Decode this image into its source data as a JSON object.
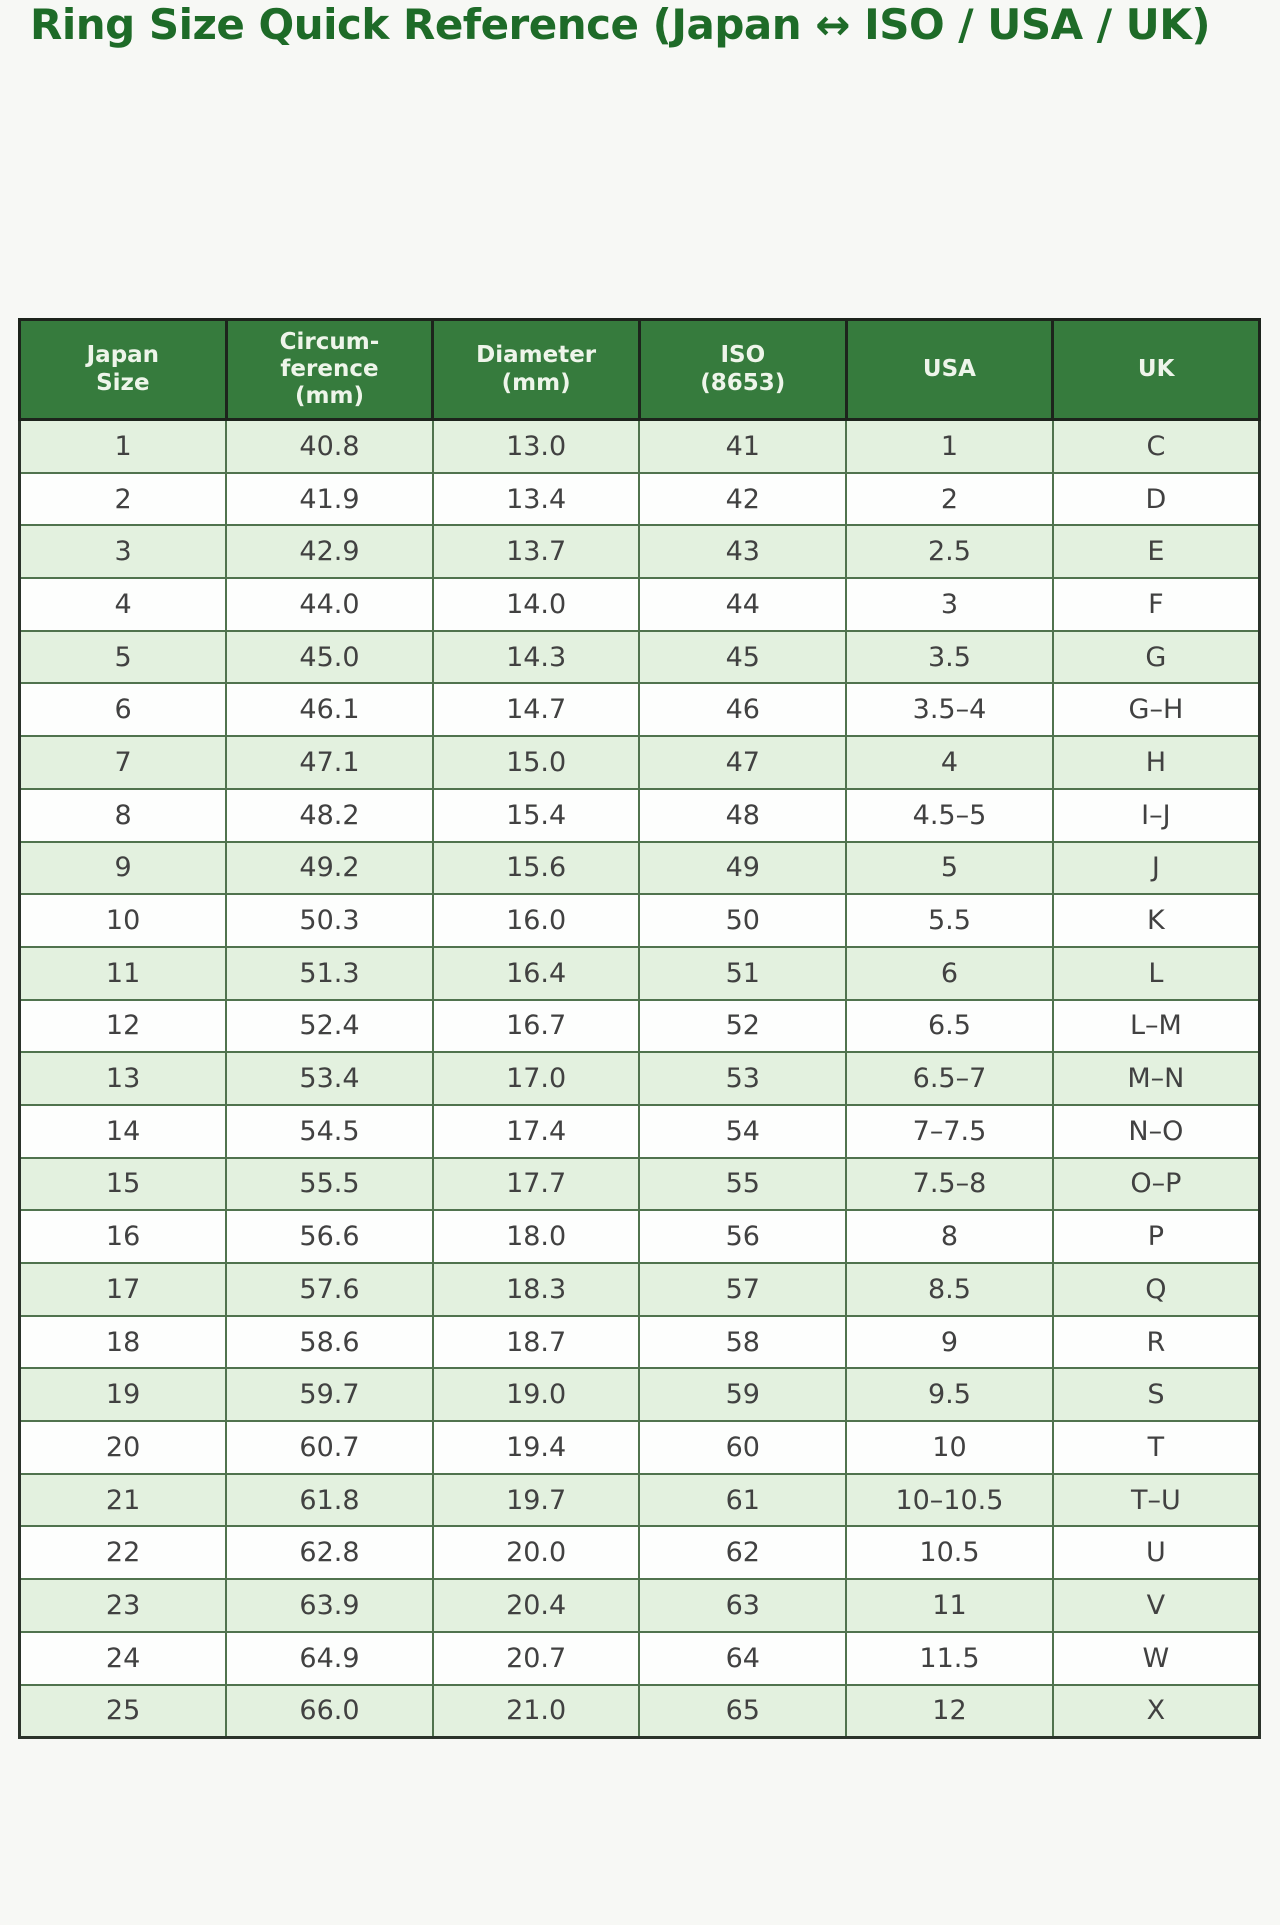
{
  "title": "Ring Size Quick Reference (Japan ↔ ISO / USA / UK)",
  "chart_data": {
    "type": "table",
    "title": "Ring Size Quick Reference (Japan ↔ ISO / USA / UK)",
    "columns": [
      "Japan Size",
      "Circumference (mm)",
      "Diameter (mm)",
      "ISO (8653)",
      "USA",
      "UK"
    ],
    "column_lines": [
      [
        "Japan",
        "Size"
      ],
      [
        "Circum-",
        "ference",
        "(mm)"
      ],
      [
        "Diameter",
        "(mm)"
      ],
      [
        "ISO",
        "(8653)"
      ],
      [
        "USA"
      ],
      [
        "UK"
      ]
    ],
    "rows": [
      [
        "1",
        "40.8",
        "13.0",
        "41",
        "1",
        "C"
      ],
      [
        "2",
        "41.9",
        "13.4",
        "42",
        "2",
        "D"
      ],
      [
        "3",
        "42.9",
        "13.7",
        "43",
        "2.5",
        "E"
      ],
      [
        "4",
        "44.0",
        "14.0",
        "44",
        "3",
        "F"
      ],
      [
        "5",
        "45.0",
        "14.3",
        "45",
        "3.5",
        "G"
      ],
      [
        "6",
        "46.1",
        "14.7",
        "46",
        "3.5–4",
        "G–H"
      ],
      [
        "7",
        "47.1",
        "15.0",
        "47",
        "4",
        "H"
      ],
      [
        "8",
        "48.2",
        "15.4",
        "48",
        "4.5–5",
        "I–J"
      ],
      [
        "9",
        "49.2",
        "15.6",
        "49",
        "5",
        "J"
      ],
      [
        "10",
        "50.3",
        "16.0",
        "50",
        "5.5",
        "K"
      ],
      [
        "11",
        "51.3",
        "16.4",
        "51",
        "6",
        "L"
      ],
      [
        "12",
        "52.4",
        "16.7",
        "52",
        "6.5",
        "L–M"
      ],
      [
        "13",
        "53.4",
        "17.0",
        "53",
        "6.5–7",
        "M–N"
      ],
      [
        "14",
        "54.5",
        "17.4",
        "54",
        "7–7.5",
        "N–O"
      ],
      [
        "15",
        "55.5",
        "17.7",
        "55",
        "7.5–8",
        "O–P"
      ],
      [
        "16",
        "56.6",
        "18.0",
        "56",
        "8",
        "P"
      ],
      [
        "17",
        "57.6",
        "18.3",
        "57",
        "8.5",
        "Q"
      ],
      [
        "18",
        "58.6",
        "18.7",
        "58",
        "9",
        "R"
      ],
      [
        "19",
        "59.7",
        "19.0",
        "59",
        "9.5",
        "S"
      ],
      [
        "20",
        "60.7",
        "19.4",
        "60",
        "10",
        "T"
      ],
      [
        "21",
        "61.8",
        "19.7",
        "61",
        "10–10.5",
        "T–U"
      ],
      [
        "22",
        "62.8",
        "20.0",
        "62",
        "10.5",
        "U"
      ],
      [
        "23",
        "63.9",
        "20.4",
        "63",
        "11",
        "V"
      ],
      [
        "24",
        "64.9",
        "20.7",
        "64",
        "11.5",
        "W"
      ],
      [
        "25",
        "66.0",
        "21.0",
        "65",
        "12",
        "X"
      ]
    ]
  },
  "colors": {
    "title": "#1e6b28",
    "header_bg": "#367b3d",
    "header_text": "#eef5ea",
    "row_odd_bg": "#e3f1df",
    "row_even_bg": "#fdfefd",
    "cell_border": "#50734e",
    "outer_border": "#2b332a",
    "header_border": "#1d241c",
    "cell_text": "#414141",
    "page_bg": "#f7f8f5"
  }
}
